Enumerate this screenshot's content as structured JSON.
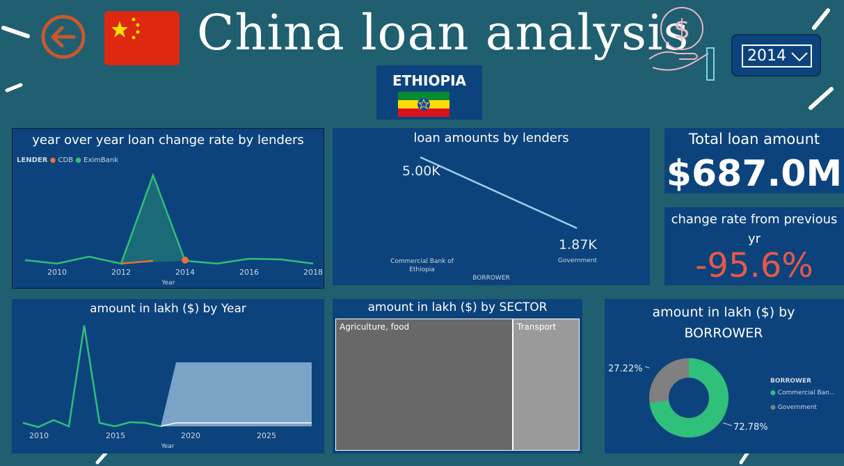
{
  "header": {
    "title": "China loan analysis",
    "country": "ETHIOPIA",
    "year_selector": {
      "selected": "2014"
    }
  },
  "icons": [
    "back-arrow-icon",
    "china-flag-icon",
    "dollar-hand-icon",
    "chevron-down-icon",
    "ethiopia-flag-icon"
  ],
  "colors": {
    "background": "#1f5f70",
    "panel": "#0c437c",
    "cdb": "#e8703a",
    "eximbank": "#2fc07a",
    "negative": "#e8584a",
    "government": "#808080"
  },
  "kpis": {
    "total_title": "Total loan amount",
    "total_value": "$687.0M",
    "change_title": "change rate from previous yr",
    "change_value": "-95.6%"
  },
  "charts": {
    "yoy": {
      "title": "year over year loan change rate by lenders",
      "legend_title": "LENDER",
      "legend": [
        "CDB",
        "EximBank"
      ],
      "xlabel": "Year",
      "xticks": [
        "2010",
        "2012",
        "2014",
        "2016",
        "2018"
      ]
    },
    "lenders": {
      "title": "loan amounts by lenders",
      "xlabel": "BORROWER",
      "categories": [
        "Commercial Bank of Ethiopia",
        "Government"
      ],
      "labels": [
        "5.00K",
        "1.87K"
      ]
    },
    "by_year": {
      "title": "amount in lakh ($) by Year",
      "xlabel": "Year",
      "xticks": [
        "2010",
        "2015",
        "2020",
        "2025"
      ]
    },
    "sector": {
      "title": "amount in lakh ($) by SECTOR",
      "cells": [
        "Agriculture, food",
        "Transport"
      ]
    },
    "borrower": {
      "title": "amount in lakh ($) by BORROWER",
      "legend_title": "BORROWER",
      "legend": [
        "Commercial Ban...",
        "Government"
      ],
      "labels": [
        "27.22%",
        "72.78%"
      ]
    }
  },
  "chart_data": [
    {
      "type": "line",
      "title": "year over year loan change rate by lenders",
      "xlabel": "Year",
      "series": [
        {
          "name": "CDB",
          "x": [
            2012,
            2013,
            2014
          ],
          "values": [
            0,
            0.2,
            0.3
          ]
        },
        {
          "name": "EximBank",
          "x": [
            2009,
            2010,
            2011,
            2012,
            2013,
            2014,
            2015,
            2016,
            2017,
            2018
          ],
          "values": [
            0.2,
            0,
            0.5,
            0,
            9,
            0.2,
            0,
            0.3,
            0.3,
            0
          ]
        }
      ],
      "legend": "top-left"
    },
    {
      "type": "line",
      "title": "loan amounts by lenders",
      "xlabel": "BORROWER",
      "categories": [
        "Commercial Bank of Ethiopia",
        "Government"
      ],
      "values": [
        5000,
        1870
      ]
    },
    {
      "type": "line",
      "title": "amount in lakh ($) by Year",
      "xlabel": "Year",
      "x": [
        2007,
        2008,
        2009,
        2010,
        2011,
        2012,
        2013,
        2014,
        2015,
        2016,
        2017,
        2018
      ],
      "values": [
        300,
        100,
        700,
        200,
        7000,
        200,
        50,
        300,
        300,
        50,
        50,
        50
      ],
      "xlim": [
        2007,
        2028
      ]
    },
    {
      "type": "table",
      "title": "amount in lakh ($) by SECTOR",
      "categories": [
        "Agriculture, food",
        "Transport"
      ],
      "values": [
        73,
        27
      ]
    },
    {
      "type": "pie",
      "title": "amount in lakh ($) by BORROWER",
      "categories": [
        "Commercial Ban...",
        "Government"
      ],
      "values": [
        72.78,
        27.22
      ],
      "legend": "right"
    }
  ]
}
